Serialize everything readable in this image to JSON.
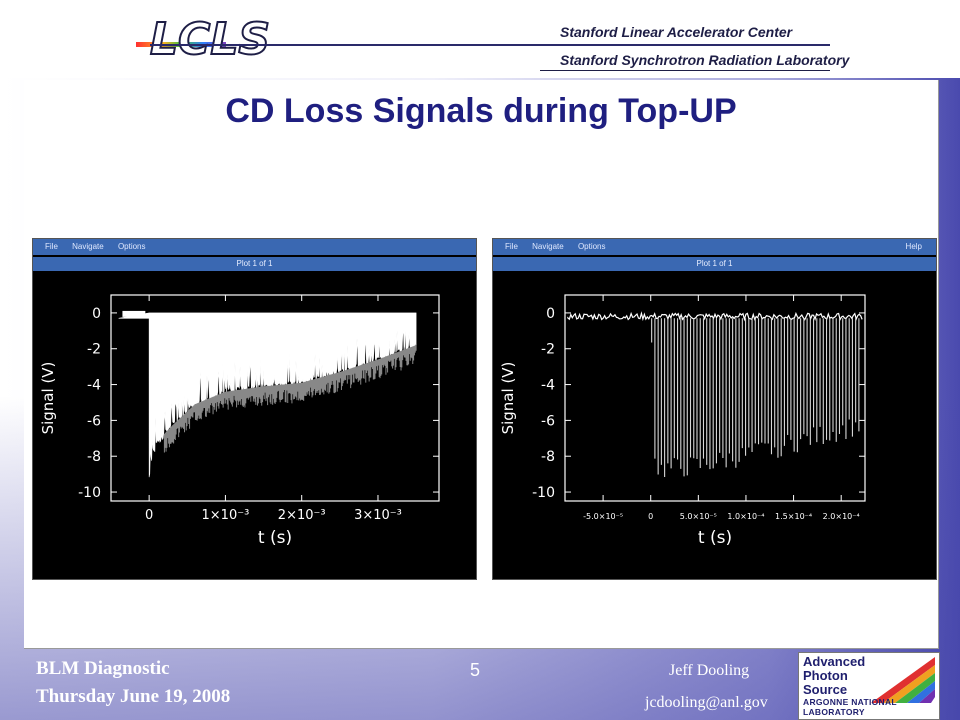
{
  "header": {
    "logo_text": "LCLS",
    "lab_line1": "Stanford Linear Accelerator Center",
    "lab_line2": "Stanford Synchrotron Radiation Laboratory"
  },
  "slide": {
    "title": "CD Loss Signals during Top-UP"
  },
  "plots": [
    {
      "menu": [
        "File",
        "Navigate",
        "Options"
      ],
      "plot_title": "Plot 1 of 1",
      "ylabel": "Signal (V)",
      "xlabel": "t (s)",
      "yticks": [
        "0",
        "-2",
        "-4",
        "-6",
        "-8",
        "-10"
      ],
      "xticks": [
        "0",
        "1×10⁻³",
        "2×10⁻³",
        "3×10⁻³"
      ]
    },
    {
      "menu": [
        "File",
        "Navigate",
        "Options"
      ],
      "help": "Help",
      "plot_title": "Plot 1 of 1",
      "ylabel": "Signal (V)",
      "xlabel": "t (s)",
      "yticks": [
        "0",
        "-2",
        "-4",
        "-6",
        "-8",
        "-10"
      ],
      "xticks": [
        "-5.0×10⁻⁵",
        "0",
        "5.0×10⁻⁵",
        "1.0×10⁻⁴",
        "1.5×10⁻⁴",
        "2.0×10⁻⁴"
      ]
    }
  ],
  "chart_data": [
    {
      "type": "line",
      "xlabel": "t (s)",
      "ylabel": "Signal (V)",
      "xlim": [
        -0.0005,
        0.0038
      ],
      "ylim": [
        -10.5,
        1
      ],
      "grid": false,
      "series": [
        {
          "x": [
            -0.0004,
            -0.0001,
            0.0,
            5e-05,
            0.0001,
            0.0003,
            0.0006,
            0.001,
            0.0015,
            0.002,
            0.0025,
            0.003,
            0.0035
          ],
          "y": [
            -0.3,
            -0.3,
            -9.2,
            -8.0,
            -7.2,
            -6.3,
            -5.1,
            -4.4,
            -4.1,
            -3.9,
            -3.3,
            -2.6,
            -1.8
          ]
        }
      ]
    },
    {
      "type": "line",
      "xlabel": "t (s)",
      "ylabel": "Signal (V)",
      "xlim": [
        -9e-05,
        0.000225
      ],
      "ylim": [
        -10.5,
        1
      ],
      "grid": false,
      "series": [
        {
          "x": [
            -9e-05,
            0.0,
            5e-06,
            5e-05,
            0.0001,
            0.00015,
            0.0002,
            0.00022
          ],
          "y": [
            -0.3,
            -0.3,
            -9.0,
            -8.8,
            -8.2,
            -7.5,
            -6.8,
            -6.5
          ]
        }
      ]
    }
  ],
  "footer": {
    "left_line1": "BLM Diagnostic",
    "left_line2": "Thursday June 19, 2008",
    "page_number": "5",
    "author": "Jeff Dooling",
    "email": "jcdooling@anl.gov"
  },
  "aps_logo": {
    "line1": "Advanced",
    "line2": "Photon",
    "line3": "Source",
    "lab": "ARGONNE NATIONAL LABORATORY"
  },
  "colors": {
    "title": "#1f1f80",
    "menubar": "#3a68b2",
    "background_blue": "#4a4aae"
  }
}
